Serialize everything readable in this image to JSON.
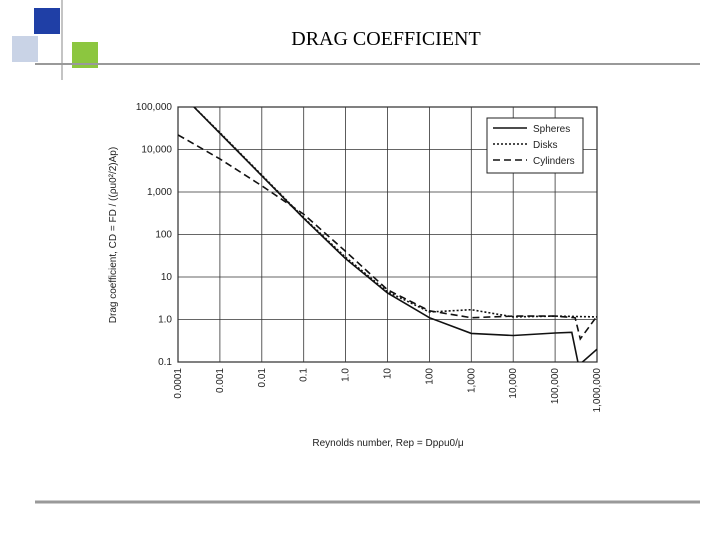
{
  "chart_data": {
    "type": "line",
    "title": "DRAG COEFFICIENT",
    "x_label": "Reynolds number, Rep = Dpρu0/μ",
    "y_label": "Drag coefficient, CD = FD / ((ρu0²/2)Ap)",
    "xscale": "log",
    "yscale": "log",
    "grid": true,
    "legend": "upper right",
    "xlim": [
      0.0001,
      1000000
    ],
    "ylim": [
      0.1,
      100000
    ],
    "xticks": [
      0.0001,
      0.001,
      0.01,
      0.1,
      {
        "value": 1,
        "label": "1.0"
      },
      10,
      100,
      {
        "value": 1000,
        "label": "1,000"
      },
      {
        "value": 10000,
        "label": "10,000"
      },
      {
        "value": 100000,
        "label": "100,000"
      },
      {
        "value": 1000000,
        "label": "1,000,000"
      }
    ],
    "yticks": [
      0.1,
      {
        "value": 1,
        "label": "1.0"
      },
      10,
      100,
      {
        "value": 1000,
        "label": "1,000"
      },
      {
        "value": 10000,
        "label": "10,000"
      },
      {
        "value": 100000,
        "label": "100,000"
      }
    ],
    "series": [
      {
        "name": "Spheres",
        "color": "#111111",
        "dash": "solid",
        "x": [
          0.00024,
          0.001,
          0.01,
          0.1,
          1,
          10,
          100,
          1000,
          10000,
          100000,
          250000,
          350000,
          400000,
          1000000
        ],
        "values": [
          100000,
          24000,
          2400,
          240,
          27,
          4.2,
          1.1,
          0.47,
          0.42,
          0.48,
          0.5,
          0.1,
          0.09,
          0.2
        ]
      },
      {
        "name": "Disks",
        "color": "#111111",
        "dash": "dotted",
        "x": [
          0.00022,
          0.001,
          0.01,
          0.1,
          1,
          10,
          100,
          1000,
          10000,
          100000,
          1000000
        ],
        "values": [
          110000,
          25000,
          2500,
          250,
          29,
          4.5,
          1.5,
          1.7,
          1.15,
          1.2,
          1.15
        ]
      },
      {
        "name": "Cylinders",
        "color": "#111111",
        "dash": "dashed",
        "x": [
          0.0001,
          0.001,
          0.01,
          0.1,
          1,
          10,
          100,
          1000,
          10000,
          100000,
          300000,
          400000,
          1000000
        ],
        "values": [
          22000,
          6000,
          1400,
          300,
          40,
          5,
          1.6,
          1.1,
          1.2,
          1.2,
          1.1,
          0.35,
          1.2
        ]
      }
    ]
  }
}
